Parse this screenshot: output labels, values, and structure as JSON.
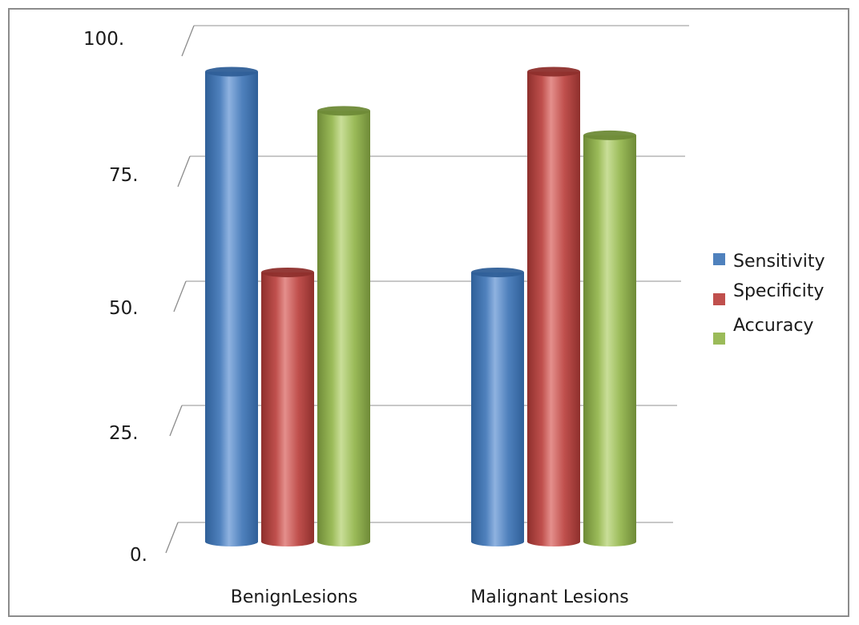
{
  "chart_data": {
    "type": "bar",
    "categories": [
      "BenignLesions",
      "Malignant Lesions"
    ],
    "series": [
      {
        "name": "Sensitivity",
        "values": [
          96,
          55
        ],
        "color": "#4f81bd",
        "dark": "#2f5f98",
        "light": "#8fb2e0"
      },
      {
        "name": "Specificity",
        "values": [
          55,
          96
        ],
        "color": "#c0504d",
        "dark": "#8e2f2c",
        "light": "#e48f8c"
      },
      {
        "name": "Accuracy",
        "values": [
          88,
          83
        ],
        "color": "#9bbb59",
        "dark": "#6e8a37",
        "light": "#c9de98"
      }
    ],
    "y_ticks": [
      "0.",
      "25.",
      "50.",
      "75.",
      "100."
    ],
    "y_tick_values": [
      0,
      25,
      50,
      75,
      100
    ],
    "ylim": [
      0,
      100
    ],
    "grid": true,
    "legend_position": "right",
    "style": "3d-cylinder"
  }
}
